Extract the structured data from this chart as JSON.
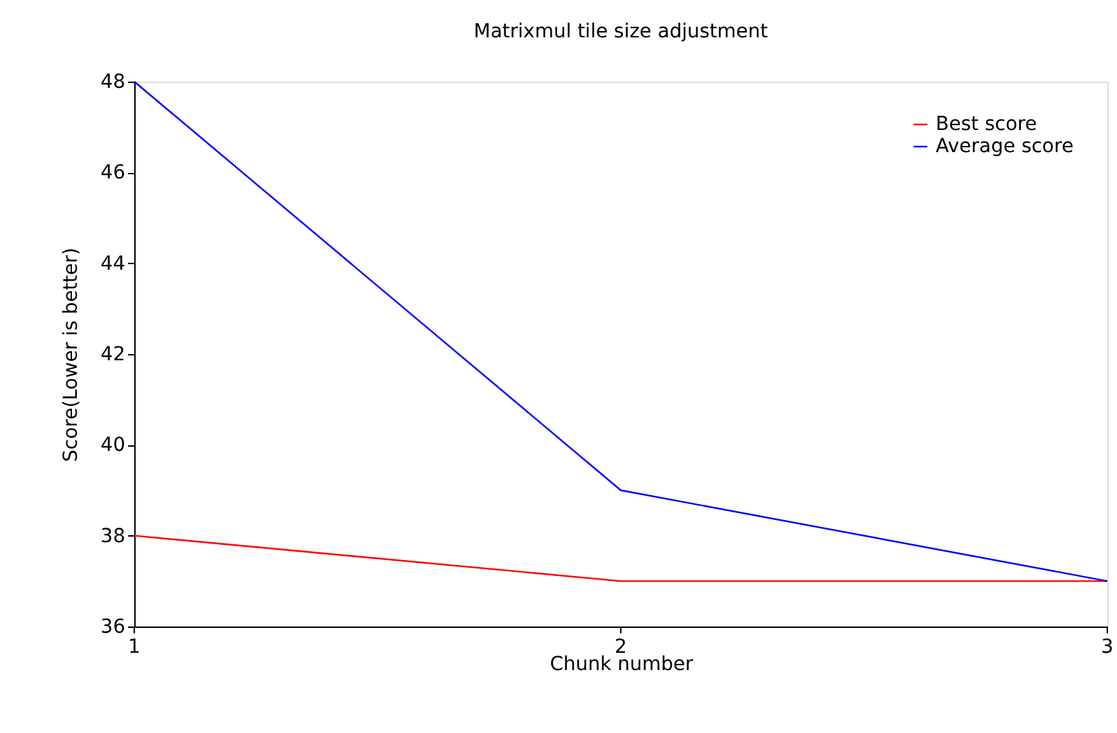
{
  "chart_data": {
    "type": "line",
    "title": "Matrixmul tile size adjustment",
    "xlabel": "Chunk number",
    "ylabel": "Score(Lower is better)",
    "x": [
      1,
      2,
      3
    ],
    "series": [
      {
        "name": "Best score",
        "color": "#ff0000",
        "values": [
          38,
          37,
          37
        ]
      },
      {
        "name": "Average score",
        "color": "#0000ff",
        "values": [
          48,
          39,
          37
        ]
      }
    ],
    "xlim": [
      1,
      3
    ],
    "xticks": [
      1,
      2,
      3
    ],
    "ylim": [
      36,
      48
    ],
    "yticks": [
      36,
      38,
      40,
      42,
      44,
      46,
      48
    ],
    "grid": false,
    "legend": "top right"
  }
}
